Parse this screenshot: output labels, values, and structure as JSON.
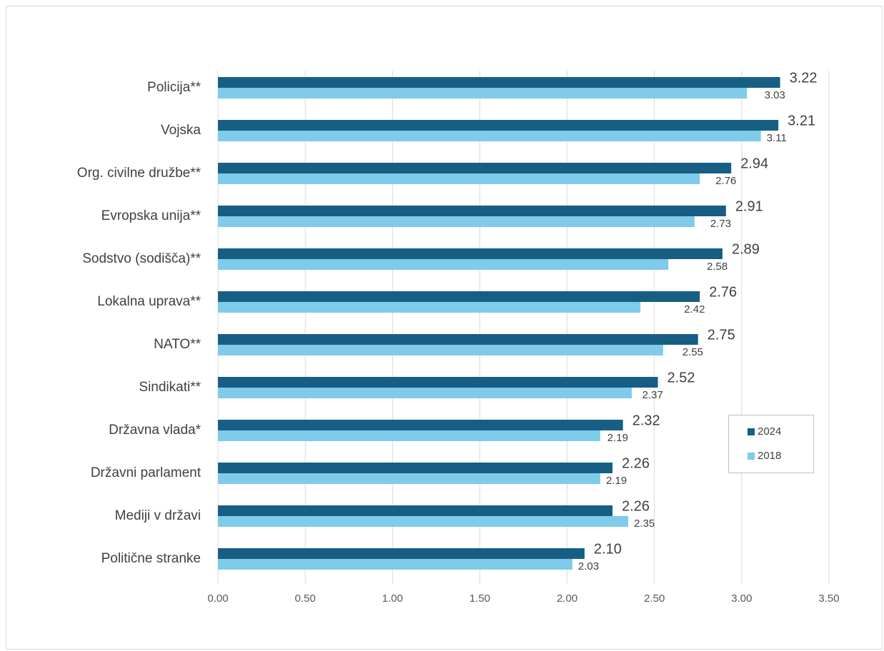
{
  "chart_data": {
    "type": "bar",
    "orientation": "horizontal",
    "categories": [
      "Policija**",
      "Vojska",
      "Org. civilne družbe**",
      "Evropska unija**",
      "Sodstvo (sodišča)**",
      "Lokalna uprava**",
      "NATO**",
      "Sindikati**",
      "Državna vlada*",
      "Državni parlament",
      "Mediji v državi",
      "Politične stranke"
    ],
    "series": [
      {
        "name": "2024",
        "color": "#175e84",
        "values": [
          3.22,
          3.21,
          2.94,
          2.91,
          2.89,
          2.76,
          2.75,
          2.52,
          2.32,
          2.26,
          2.26,
          2.1
        ],
        "data_labels": [
          "3.22",
          "3.21",
          "2.94",
          "2.91",
          "2.89",
          "2.76",
          "2.75",
          "2.52",
          "2.32",
          "2.26",
          "2.26",
          "2.10"
        ]
      },
      {
        "name": "2018",
        "color": "#7ecbea",
        "values": [
          3.03,
          3.11,
          2.76,
          2.73,
          2.58,
          2.42,
          2.55,
          2.37,
          2.19,
          2.19,
          2.35,
          2.03
        ],
        "data_labels": [
          "3.03",
          "3.11",
          "2.76",
          "2.73",
          "2.58",
          "2.42",
          "2.55",
          "2.37",
          "2.19",
          "2.19",
          "2.35",
          "2.03"
        ]
      }
    ],
    "xlim": [
      0,
      3.5
    ],
    "x_ticks": [
      "0.00",
      "0.50",
      "1.00",
      "1.50",
      "2.00",
      "2.50",
      "3.00",
      "3.50"
    ],
    "grid": "vertical",
    "legend": {
      "position": "right",
      "items": [
        "2024",
        "2018"
      ]
    },
    "title": "",
    "xlabel": "",
    "ylabel": ""
  },
  "colors": {
    "gridline": "#d9d9d9",
    "axis_text": "#595959",
    "label_text": "#404040"
  }
}
